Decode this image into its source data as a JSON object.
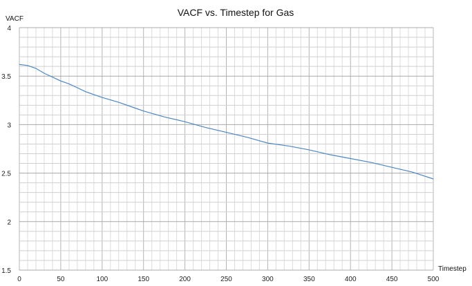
{
  "chart_data": {
    "type": "line",
    "title": "VACF vs. Timestep for Gas",
    "xlabel": "Timestep",
    "ylabel": "VACF",
    "xlim": [
      0,
      500
    ],
    "ylim": [
      1.5,
      4
    ],
    "xticks": [
      "0",
      "50",
      "100",
      "150",
      "200",
      "250",
      "300",
      "350",
      "400",
      "450",
      "500"
    ],
    "yticks": [
      "1.5",
      "2",
      "2.5",
      "3",
      "3.5",
      "4"
    ],
    "grid": true,
    "legend": "none",
    "line_color": "#4a86c5",
    "series": [
      {
        "name": "VACF",
        "x": [
          0,
          10,
          20,
          30,
          40,
          50,
          60,
          70,
          80,
          90,
          100,
          120,
          140,
          150,
          175,
          200,
          225,
          250,
          275,
          300,
          325,
          350,
          375,
          400,
          425,
          450,
          475,
          500
        ],
        "y": [
          3.62,
          3.61,
          3.58,
          3.53,
          3.49,
          3.45,
          3.42,
          3.38,
          3.34,
          3.31,
          3.28,
          3.23,
          3.17,
          3.14,
          3.08,
          3.03,
          2.97,
          2.92,
          2.87,
          2.81,
          2.78,
          2.74,
          2.69,
          2.65,
          2.61,
          2.56,
          2.51,
          2.44
        ]
      }
    ]
  }
}
